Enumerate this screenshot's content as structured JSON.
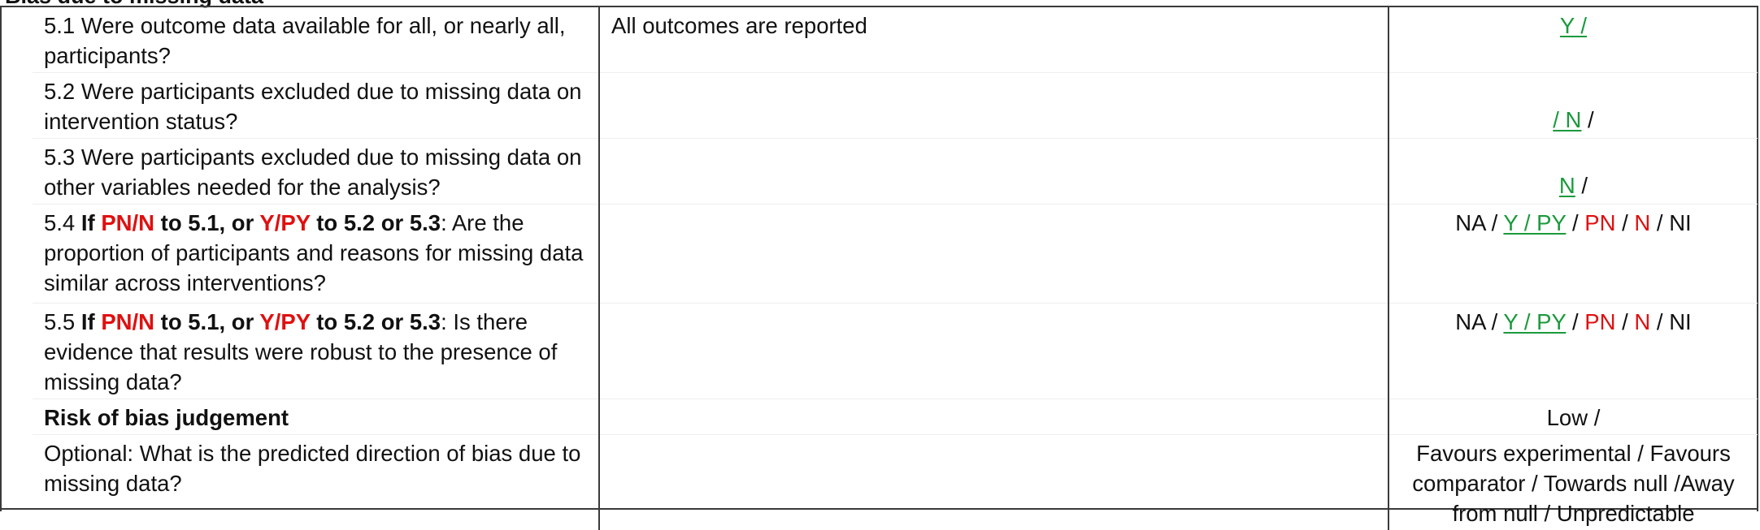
{
  "section": {
    "title": "Bias due to missing data"
  },
  "rows": [
    {
      "q_text": "5.1 Were outcome data available for all, or nearly all, participants?",
      "comment": "All outcomes are reported",
      "resp": {
        "a": "Y /"
      }
    },
    {
      "q_text": "5.2 Were participants excluded due to missing data on intervention status?",
      "comment": "",
      "resp": {
        "a": "/ N",
        "b": " /"
      }
    },
    {
      "q_text": "5.3 Were participants excluded due to missing data on other variables needed for the analysis?",
      "comment": "",
      "resp": {
        "a": "N",
        "b": " /"
      }
    },
    {
      "q": {
        "num": "5.4 ",
        "if": "If ",
        "pn_n": "PN/N",
        "to1": " to 5.1, or ",
        "y_py": "Y/PY",
        "to2": " to 5.2 or 5.3",
        "rest": ": Are the proportion of participants and reasons for missing data similar across interventions?"
      },
      "comment": "",
      "resp": {
        "na": "NA / ",
        "ypy": "Y / PY",
        "s1": " / ",
        "pn": "PN",
        "s2": " / ",
        "n": "N",
        "s3": " / NI"
      }
    },
    {
      "q": {
        "num": "5.5 ",
        "if": "If ",
        "pn_n": "PN/N",
        "to1": " to 5.1, or ",
        "y_py": "Y/PY",
        "to2": " to 5.2 or 5.3",
        "rest": ": Is there evidence that results were robust to the presence of missing data?"
      },
      "comment": "",
      "resp": {
        "na": "NA / ",
        "ypy": "Y / PY",
        "s1": " / ",
        "pn": "PN",
        "s2": " / ",
        "n": "N",
        "s3": " / NI"
      }
    },
    {
      "q_text": "Risk of bias judgement",
      "comment": "",
      "resp": {
        "a": "Low /"
      }
    },
    {
      "q_text": "Optional: What is the predicted direction of bias due to missing data?",
      "comment": "",
      "resp": {
        "a": "Favours experimental / Favours comparator / Towards null /Away from null / Unpredictable"
      }
    }
  ],
  "colors": {
    "red": "#e01010",
    "green": "#1a9a3c",
    "border": "#3a3a3a"
  }
}
